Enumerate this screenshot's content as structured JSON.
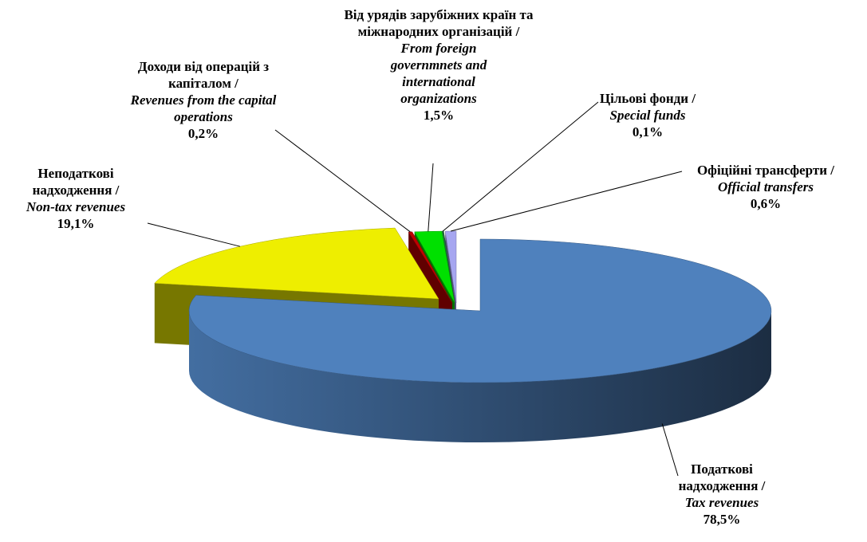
{
  "chart_data": {
    "type": "pie3d",
    "categories": [
      "Податкові надходження /",
      "Неподаткові надходження /",
      "Доходи від операцій з капіталом /",
      "Від урядів зарубіжних країн та міжнародних організацій /",
      "Цільові фонди /",
      "Офіційні трансферти /"
    ],
    "categories_en": [
      "Tax revenues",
      "Non-tax revenues",
      "Revenues from the capital operations",
      "From foreign governmnets and international organizations",
      "Special funds",
      "Official transfers"
    ],
    "values": [
      78.5,
      19.1,
      0.2,
      1.5,
      0.1,
      0.6
    ],
    "value_labels": [
      "78,5%",
      "19,1%",
      "0,2%",
      "1,5%",
      "0,1%",
      "0,6%"
    ],
    "colors": [
      "#4f81bd",
      "#eeee00",
      "#c00000",
      "#00e000",
      "#1f6f3f",
      "#a6a6f0"
    ]
  }
}
